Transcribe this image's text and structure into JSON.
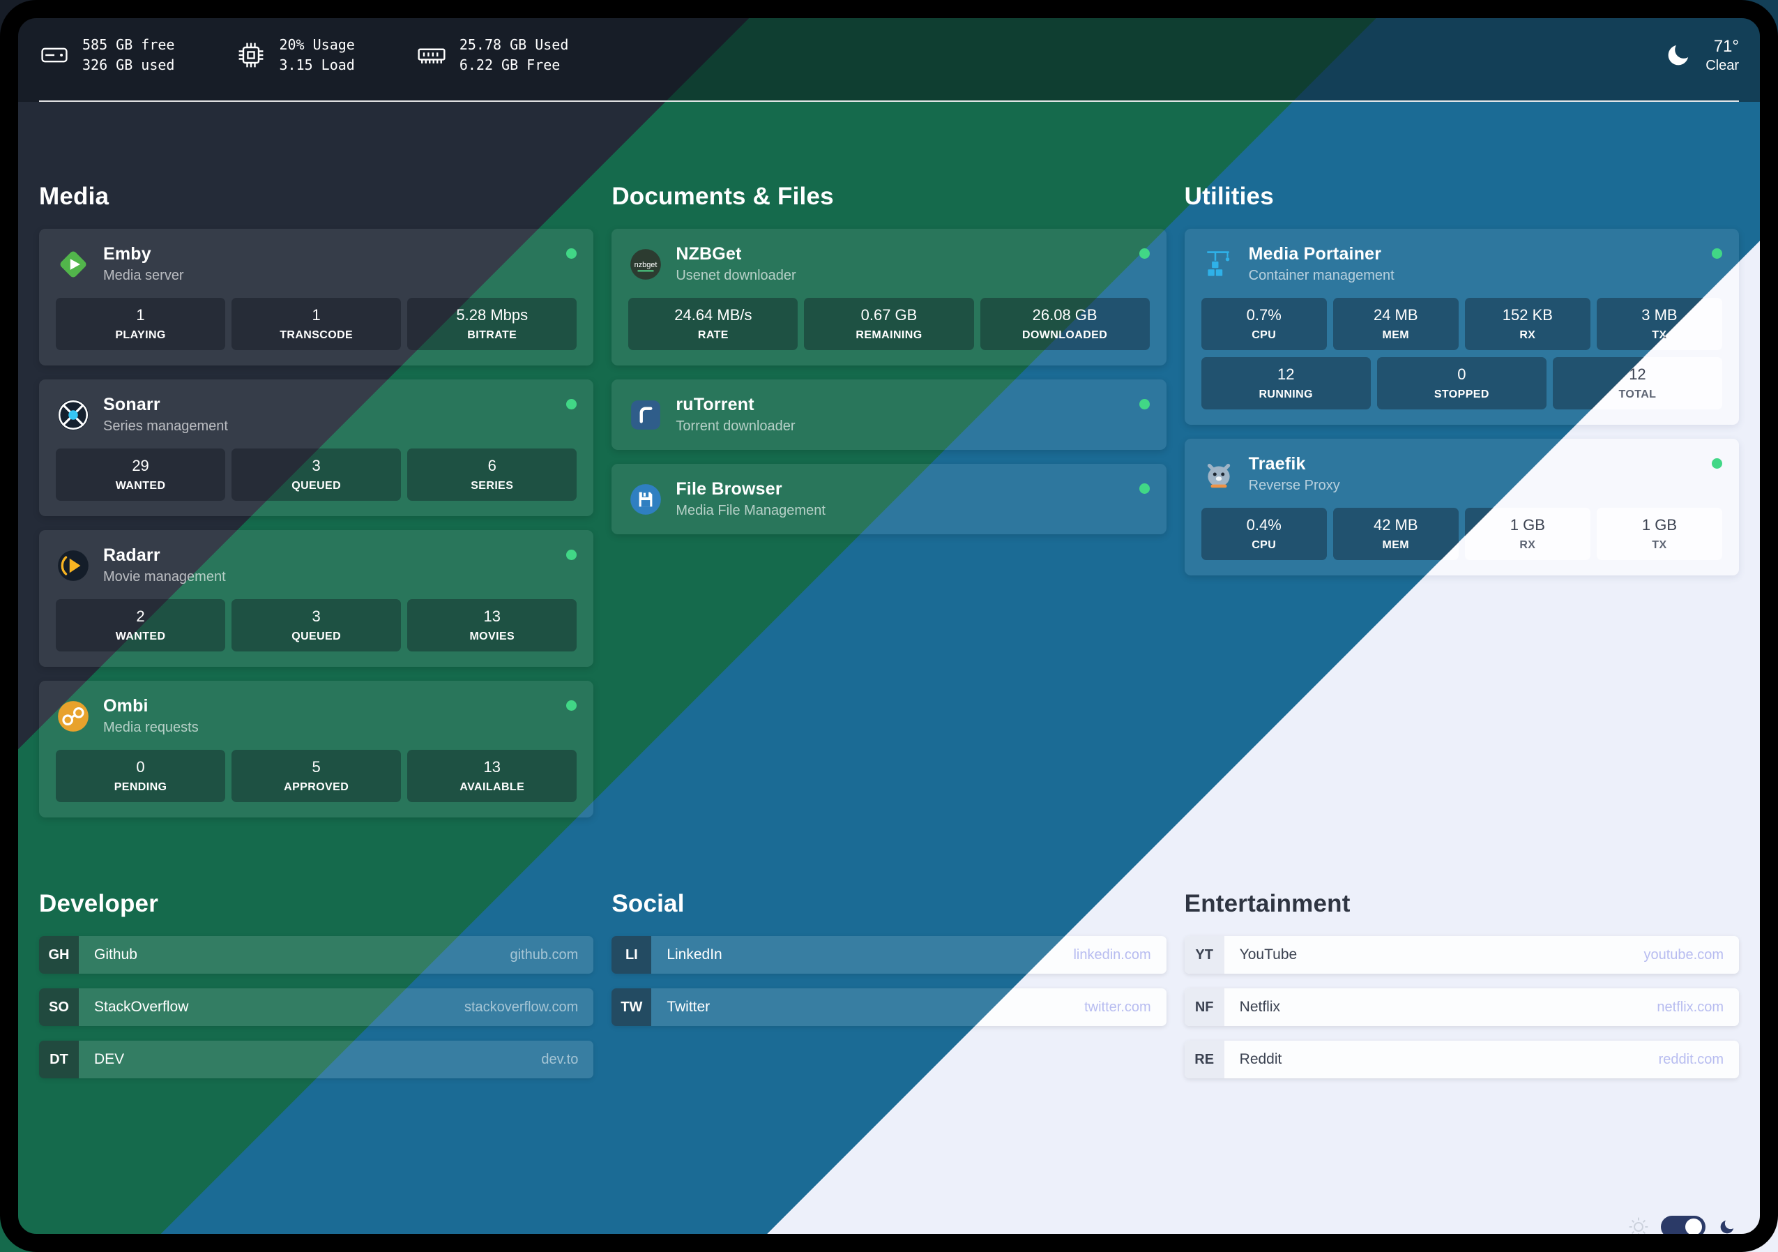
{
  "colors": {
    "status_online": "#41d786",
    "band_navy": "#242b38",
    "band_green": "#156a4c",
    "band_blue": "#1b6b95",
    "band_light": "#edf0fa"
  },
  "topbar": {
    "disk": {
      "icon": "hard-drive-icon",
      "line1": "585 GB free",
      "line2": "326 GB used"
    },
    "cpu": {
      "icon": "cpu-chip-icon",
      "line1": "20% Usage",
      "line2": "3.15 Load"
    },
    "memory": {
      "icon": "memory-stick-icon",
      "line1": "25.78 GB Used",
      "line2": "6.22 GB Free"
    },
    "weather": {
      "icon": "crescent-moon-icon",
      "temp": "71°",
      "condition": "Clear"
    }
  },
  "media": {
    "title": "Media",
    "cards": [
      {
        "name": "Emby",
        "subtitle": "Media server",
        "icon": "emby-diamond-play-icon",
        "status": "online",
        "stats": [
          {
            "value": "1",
            "label": "PLAYING"
          },
          {
            "value": "1",
            "label": "TRANSCODE"
          },
          {
            "value": "5.28 Mbps",
            "label": "BITRATE"
          }
        ]
      },
      {
        "name": "Sonarr",
        "subtitle": "Series management",
        "icon": "sonarr-target-icon",
        "status": "online",
        "stats": [
          {
            "value": "29",
            "label": "WANTED"
          },
          {
            "value": "3",
            "label": "QUEUED"
          },
          {
            "value": "6",
            "label": "SERIES"
          }
        ]
      },
      {
        "name": "Radarr",
        "subtitle": "Movie management",
        "icon": "radarr-play-arc-icon",
        "status": "online",
        "stats": [
          {
            "value": "2",
            "label": "WANTED"
          },
          {
            "value": "3",
            "label": "QUEUED"
          },
          {
            "value": "13",
            "label": "MOVIES"
          }
        ]
      },
      {
        "name": "Ombi",
        "subtitle": "Media requests",
        "icon": "ombi-links-icon",
        "status": "online",
        "stats": [
          {
            "value": "0",
            "label": "PENDING"
          },
          {
            "value": "5",
            "label": "APPROVED"
          },
          {
            "value": "13",
            "label": "AVAILABLE"
          }
        ]
      }
    ]
  },
  "documents": {
    "title": "Documents & Files",
    "cards": [
      {
        "name": "NZBGet",
        "subtitle": "Usenet downloader",
        "icon": "nzbget-badge-icon",
        "status": "online",
        "stats": [
          {
            "value": "24.64 MB/s",
            "label": "RATE"
          },
          {
            "value": "0.67 GB",
            "label": "REMAINING"
          },
          {
            "value": "26.08 GB",
            "label": "DOWNLOADED"
          }
        ]
      },
      {
        "name": "ruTorrent",
        "subtitle": "Torrent downloader",
        "icon": "rutorrent-icon",
        "status": "online"
      },
      {
        "name": "File Browser",
        "subtitle": "Media File Management",
        "icon": "filebrowser-floppy-icon",
        "status": "online"
      }
    ]
  },
  "utilities": {
    "title": "Utilities",
    "cards": [
      {
        "name": "Media Portainer",
        "subtitle": "Container management",
        "icon": "portainer-crane-icon",
        "status": "online",
        "stats": [
          {
            "value": "0.7%",
            "label": "CPU"
          },
          {
            "value": "24 MB",
            "label": "MEM"
          },
          {
            "value": "152 KB",
            "label": "RX"
          },
          {
            "value": "3 MB",
            "label": "TX"
          }
        ],
        "stats2": [
          {
            "value": "12",
            "label": "RUNNING"
          },
          {
            "value": "0",
            "label": "STOPPED"
          },
          {
            "value": "12",
            "label": "TOTAL"
          }
        ]
      },
      {
        "name": "Traefik",
        "subtitle": "Reverse Proxy",
        "icon": "traefik-gopher-icon",
        "status": "online",
        "stats": [
          {
            "value": "0.4%",
            "label": "CPU"
          },
          {
            "value": "42 MB",
            "label": "MEM"
          },
          {
            "value": "1 GB",
            "label": "RX"
          },
          {
            "value": "1 GB",
            "label": "TX"
          }
        ]
      }
    ]
  },
  "developer": {
    "title": "Developer",
    "links": [
      {
        "tag": "GH",
        "name": "Github",
        "url": "github.com"
      },
      {
        "tag": "SO",
        "name": "StackOverflow",
        "url": "stackoverflow.com"
      },
      {
        "tag": "DT",
        "name": "DEV",
        "url": "dev.to"
      }
    ]
  },
  "social": {
    "title": "Social",
    "links": [
      {
        "tag": "LI",
        "name": "LinkedIn",
        "url": "linkedin.com"
      },
      {
        "tag": "TW",
        "name": "Twitter",
        "url": "twitter.com"
      }
    ]
  },
  "entertainment": {
    "title": "Entertainment",
    "links": [
      {
        "tag": "YT",
        "name": "YouTube",
        "url": "youtube.com"
      },
      {
        "tag": "NF",
        "name": "Netflix",
        "url": "netflix.com"
      },
      {
        "tag": "RE",
        "name": "Reddit",
        "url": "reddit.com"
      }
    ]
  }
}
